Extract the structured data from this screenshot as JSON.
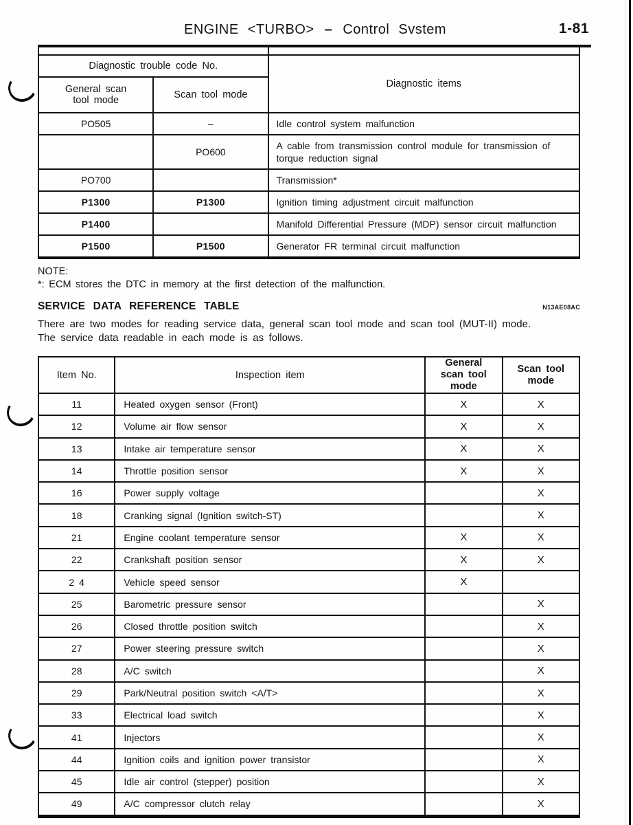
{
  "page": {
    "header": {
      "title_left": "ENGINE <TURBO>",
      "title_dash": "–",
      "title_right": "Control Svstem",
      "page_number": "1-81"
    },
    "dtc_table": {
      "header": {
        "group": "Diagnostic trouble code No.",
        "col_general": "General scan tool mode",
        "col_scan": "Scan tool mode",
        "col_items": "Diagnostic items"
      },
      "rows": [
        {
          "general": "PO505",
          "scan": "–",
          "item": "Idle control system malfunction"
        },
        {
          "general": "",
          "scan": "PO600",
          "item": "A cable from transmission control module for transmission of torque reduction signal"
        },
        {
          "general": "PO700",
          "scan": "",
          "item": "Transmission*"
        },
        {
          "general": "P1300",
          "scan": "P1300",
          "item": "Ignition timing adjustment circuit malfunction"
        },
        {
          "general": "P1400",
          "scan": "",
          "item": "Manifold Differential Pressure (MDP) sensor circuit malfunction"
        },
        {
          "general": "P1500",
          "scan": "P1500",
          "item": "Generator FR terminal circuit malfunction"
        }
      ]
    },
    "note": {
      "label": "NOTE:",
      "text": "*: ECM stores the DTC in memory at the first detection of the malfunction."
    },
    "service_section": {
      "heading": "SERVICE DATA REFERENCE TABLE",
      "ref_code": "N13AE08AC",
      "intro_line1": "There are two modes for reading service data, general scan tool mode and scan tool (MUT-II) mode.",
      "intro_line2": "The service data readable in each mode is as follows."
    },
    "service_table": {
      "header": {
        "item_no": "Item No.",
        "inspection_item": "Inspection item",
        "general": "General scan tool mode",
        "scan": "Scan tool mode"
      },
      "rows": [
        {
          "no": "11",
          "item": "Heated oxygen sensor (Front)",
          "general": "X",
          "scan": "X"
        },
        {
          "no": "12",
          "item": "Volume air flow sensor",
          "general": "X",
          "scan": "X"
        },
        {
          "no": "13",
          "item": "Intake air temperature sensor",
          "general": "X",
          "scan": "X"
        },
        {
          "no": "14",
          "item": "Throttle position sensor",
          "general": "X",
          "scan": "X"
        },
        {
          "no": "16",
          "item": "Power supply voltage",
          "general": "",
          "scan": "X"
        },
        {
          "no": "18",
          "item": "Cranking signal (Ignition switch-ST)",
          "general": "",
          "scan": "X"
        },
        {
          "no": "21",
          "item": "Engine coolant temperature sensor",
          "general": "X",
          "scan": "X"
        },
        {
          "no": "22",
          "item": "Crankshaft position sensor",
          "general": "X",
          "scan": "X"
        },
        {
          "no": "2 4",
          "item": "Vehicle speed sensor",
          "general": "X",
          "scan": ""
        },
        {
          "no": "25",
          "item": "Barometric pressure sensor",
          "general": "",
          "scan": "X"
        },
        {
          "no": "26",
          "item": "Closed throttle position switch",
          "general": "",
          "scan": "X"
        },
        {
          "no": "27",
          "item": "Power steering pressure switch",
          "general": "",
          "scan": "X"
        },
        {
          "no": "28",
          "item": "A/C switch",
          "general": "",
          "scan": "X"
        },
        {
          "no": "29",
          "item": "Park/Neutral position switch <A/T>",
          "general": "",
          "scan": "X"
        },
        {
          "no": "33",
          "item": "Electrical load switch",
          "general": "",
          "scan": "X"
        },
        {
          "no": "41",
          "item": "Injectors",
          "general": "",
          "scan": "X"
        },
        {
          "no": "44",
          "item": "Ignition coils and ignition power transistor",
          "general": "",
          "scan": "X"
        },
        {
          "no": "45",
          "item": "Idle air control (stepper) position",
          "general": "",
          "scan": "X"
        },
        {
          "no": "49",
          "item": "A/C compressor clutch relay",
          "general": "",
          "scan": "X"
        }
      ]
    }
  }
}
